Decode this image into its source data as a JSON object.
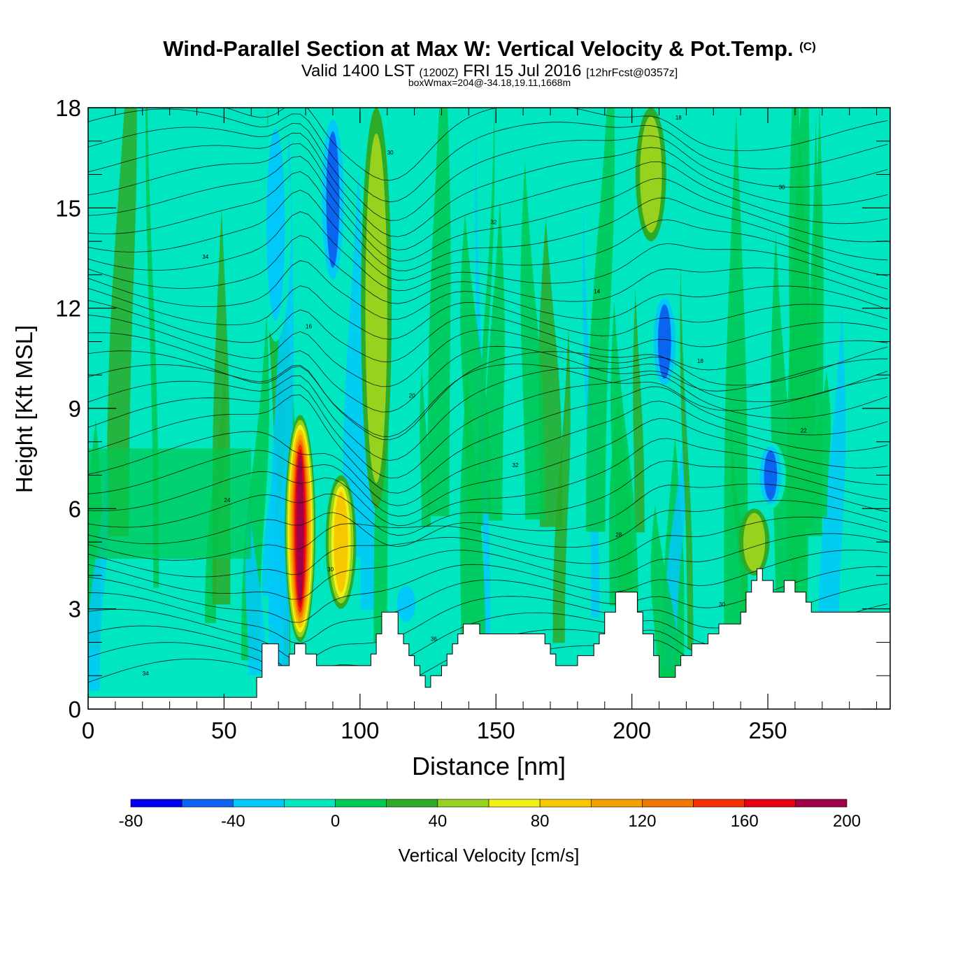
{
  "header": {
    "title": "Wind-Parallel Section at Max W: Vertical Velocity & Pot.Temp.",
    "copyright": "(C)",
    "valid_prefix": "Valid 1400 LST",
    "valid_zulu": "(1200Z)",
    "valid_date": "FRI 15 Jul 2016",
    "forecast": "[12hrFcst@0357z]",
    "box_wmax": "boxWmax=204@-34.18,19.11,1668m"
  },
  "chart_data": {
    "type": "heatmap",
    "xlabel": "Distance [nm]",
    "ylabel": "Height [Kft MSL]",
    "xlim": [
      0,
      295
    ],
    "ylim": [
      0,
      18
    ],
    "x_ticks": [
      0,
      50,
      100,
      150,
      200,
      250
    ],
    "y_ticks": [
      0,
      3,
      6,
      9,
      12,
      15,
      18
    ],
    "grid": false,
    "colorbar": {
      "label": "Vertical Velocity [cm/s]",
      "tick_labels": [
        "-80",
        "-40",
        "0",
        "40",
        "80",
        "120",
        "160",
        "200"
      ],
      "bins": [
        -80,
        -60,
        -40,
        -20,
        0,
        20,
        40,
        60,
        80,
        100,
        120,
        140,
        160,
        180,
        200
      ],
      "colors": [
        "#0000ee",
        "#0a64f0",
        "#00c8f8",
        "#00e6c0",
        "#00c850",
        "#2caa28",
        "#96d21e",
        "#f0f014",
        "#f5c800",
        "#f5a000",
        "#f07800",
        "#f03200",
        "#e60014",
        "#a0004a"
      ]
    },
    "terrain": {
      "distance_nm": [
        0,
        62,
        62,
        64,
        64,
        70,
        70,
        74,
        74,
        76,
        76,
        80,
        80,
        84,
        84,
        104,
        104,
        106,
        106,
        108,
        108,
        114,
        114,
        116,
        116,
        118,
        118,
        120,
        120,
        122,
        122,
        124,
        124,
        126,
        126,
        130,
        130,
        132,
        132,
        134,
        134,
        136,
        136,
        138,
        138,
        144,
        144,
        168,
        168,
        170,
        170,
        172,
        172,
        180,
        180,
        186,
        186,
        188,
        188,
        190,
        190,
        194,
        194,
        202,
        202,
        204,
        204,
        208,
        208,
        210,
        210,
        216,
        216,
        218,
        218,
        222,
        222,
        228,
        228,
        232,
        232,
        240,
        240,
        242,
        242,
        244,
        244,
        246,
        246,
        248,
        248,
        252,
        252,
        256,
        256,
        260,
        260,
        264,
        264,
        266,
        266,
        270,
        270,
        272,
        272,
        278,
        278,
        295
      ],
      "height_kft": [
        0.35,
        0.35,
        0.95,
        0.95,
        1.95,
        1.95,
        1.3,
        1.3,
        1.65,
        1.65,
        1.95,
        1.95,
        1.65,
        1.65,
        1.3,
        1.3,
        1.65,
        1.65,
        2.25,
        2.25,
        2.9,
        2.9,
        2.25,
        2.25,
        1.95,
        1.95,
        1.6,
        1.6,
        1.3,
        1.3,
        1.0,
        1.0,
        0.65,
        0.65,
        1.0,
        1.0,
        1.3,
        1.3,
        1.65,
        1.65,
        1.95,
        1.95,
        2.25,
        2.25,
        2.55,
        2.55,
        2.25,
        2.25,
        1.95,
        1.95,
        1.65,
        1.65,
        1.3,
        1.3,
        1.6,
        1.6,
        1.95,
        1.95,
        2.25,
        2.25,
        2.9,
        2.9,
        3.5,
        3.5,
        2.9,
        2.9,
        2.25,
        2.25,
        1.6,
        1.6,
        0.95,
        0.95,
        1.3,
        1.3,
        1.6,
        1.6,
        1.95,
        1.95,
        2.25,
        2.25,
        2.55,
        2.55,
        2.9,
        2.9,
        3.5,
        3.5,
        3.85,
        3.85,
        4.2,
        4.2,
        3.85,
        3.85,
        3.5,
        3.5,
        3.85,
        3.85,
        3.5,
        3.5,
        3.2,
        3.2,
        2.9,
        2.9,
        2.9,
        2.9,
        2.9,
        2.9,
        2.9,
        2.9
      ]
    },
    "updrafts": [
      {
        "x": 78,
        "y0": 2.0,
        "y1": 8.8,
        "w_max": 204
      },
      {
        "x": 93,
        "y0": 3.0,
        "y1": 7.0,
        "w_max": 90
      },
      {
        "x": 106,
        "y0": 6.0,
        "y1": 18.0,
        "w_max": 50
      },
      {
        "x": 207,
        "y0": 14.0,
        "y1": 18.0,
        "w_max": 50
      },
      {
        "x": 245,
        "y0": 4.0,
        "y1": 6.0,
        "w_max": 55
      }
    ],
    "downdrafts": [
      {
        "x": 90,
        "y0": 12.5,
        "y1": 18.0,
        "w_min": -60
      },
      {
        "x": 69,
        "y0": 11.0,
        "y1": 18.0,
        "w_min": -50
      },
      {
        "x": 212,
        "y0": 9.5,
        "y1": 12.5,
        "w_min": -70
      },
      {
        "x": 251,
        "y0": 6.0,
        "y1": 8.0,
        "w_min": -60
      },
      {
        "x": 117,
        "y0": 2.5,
        "y1": 3.8,
        "w_min": -45
      }
    ],
    "contour_labels": [
      "34",
      "36",
      "30",
      "30",
      "28",
      "24",
      "32",
      "22",
      "20",
      "18",
      "16",
      "14",
      "34",
      "32",
      "30",
      "30",
      "18",
      "18",
      "18",
      "34",
      "32",
      "28",
      "26",
      "28",
      "24",
      "22",
      "20",
      "18",
      "26",
      "30",
      "28",
      "34",
      "30",
      "28",
      "26"
    ]
  }
}
